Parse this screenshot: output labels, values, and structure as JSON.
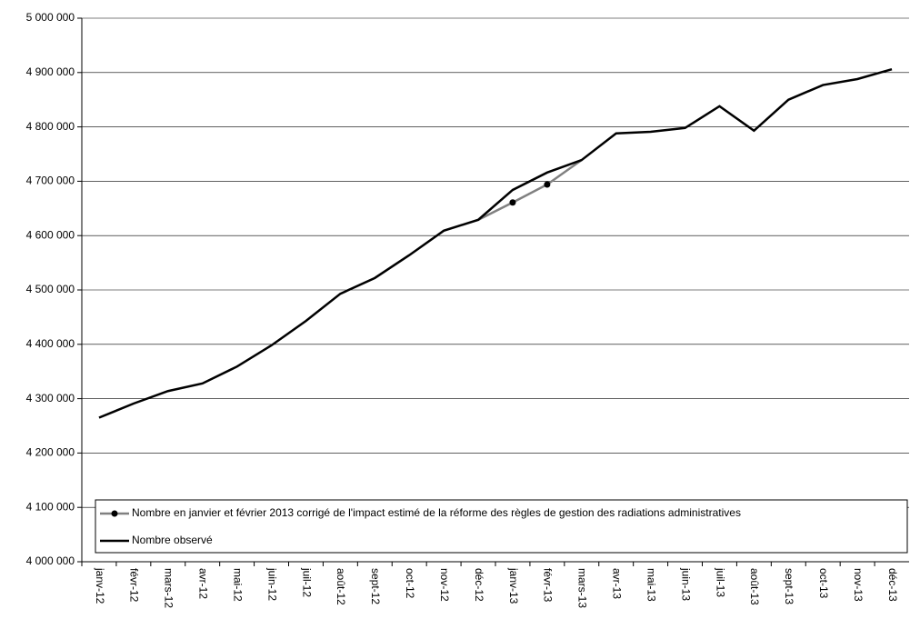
{
  "chart_data": {
    "type": "line",
    "categories": [
      "janv-12",
      "févr-12",
      "mars-12",
      "avr-12",
      "mai-12",
      "juin-12",
      "juil-12",
      "août-12",
      "sept-12",
      "oct-12",
      "nov-12",
      "déc-12",
      "janv-13",
      "févr-13",
      "mars-13",
      "avr-13",
      "mai-13",
      "juin-13",
      "juil-13",
      "août-13",
      "sept-13",
      "oct-13",
      "nov-13",
      "déc-13"
    ],
    "series": [
      {
        "name": "Nombre en janvier et février 2013 corrigé de l'impact estimé de la réforme des règles de gestion des radiations administratives",
        "color": "#808080",
        "values": [
          null,
          null,
          null,
          null,
          null,
          null,
          null,
          null,
          null,
          null,
          null,
          4629000,
          4661000,
          4694000,
          4739000,
          null,
          null,
          null,
          null,
          null,
          null,
          null,
          null,
          null
        ]
      },
      {
        "name": "Nombre observé",
        "color": "#000000",
        "values": [
          4265000,
          4291000,
          4314000,
          4328000,
          4359000,
          4398000,
          4443000,
          4493000,
          4522000,
          4564000,
          4609000,
          4629000,
          4684000,
          4716000,
          4739000,
          4788000,
          4791000,
          4798000,
          4838000,
          4793000,
          4850000,
          4877000,
          4888000,
          4906000
        ]
      }
    ],
    "ylim": [
      4000000,
      5000000
    ],
    "yticks": [
      {
        "value": 4000000,
        "label": "4 000 000"
      },
      {
        "value": 4100000,
        "label": "4 100 000"
      },
      {
        "value": 4200000,
        "label": "4 200 000"
      },
      {
        "value": 4300000,
        "label": "4 300 000"
      },
      {
        "value": 4400000,
        "label": "4 400 000"
      },
      {
        "value": 4500000,
        "label": "4 500 000"
      },
      {
        "value": 4600000,
        "label": "4 600 000"
      },
      {
        "value": 4700000,
        "label": "4 700 000"
      },
      {
        "value": 4800000,
        "label": "4 800 000"
      },
      {
        "value": 4900000,
        "label": "4 900 000"
      },
      {
        "value": 5000000,
        "label": "5 000 000"
      }
    ],
    "grid": true,
    "legend": "lower left"
  }
}
